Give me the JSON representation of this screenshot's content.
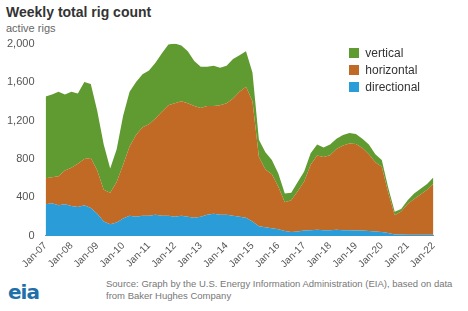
{
  "chart_data": {
    "type": "stacked_area",
    "title": "Weekly total rig count",
    "subtitle": "active rigs",
    "source": "Source: Graph by the U.S. Energy Information Administration (EIA), based on data from Baker Hughes Company",
    "logo": "eia",
    "categories": [
      "Jan-07",
      null,
      null,
      null,
      "Jan-08",
      null,
      null,
      null,
      "Jan-09",
      null,
      null,
      null,
      "Jan-10",
      null,
      null,
      null,
      "Jan-11",
      null,
      null,
      null,
      "Jan-12",
      null,
      null,
      null,
      "Jan-13",
      null,
      null,
      null,
      "Jan-14",
      null,
      null,
      null,
      "Jan-15",
      null,
      null,
      null,
      "Jan-16",
      null,
      null,
      null,
      "Jan-17",
      null,
      null,
      null,
      "Jan-18",
      null,
      null,
      null,
      "Jan-19",
      null,
      null,
      null,
      "Jan-20",
      null,
      null,
      null,
      "Jan-21",
      null,
      null,
      null,
      "Jan-22"
    ],
    "series": [
      {
        "name": "directional",
        "color": "#2a9dd8",
        "values": [
          330,
          340,
          320,
          330,
          310,
          300,
          320,
          290,
          230,
          150,
          120,
          140,
          180,
          210,
          200,
          210,
          210,
          220,
          210,
          210,
          200,
          210,
          200,
          190,
          200,
          220,
          230,
          220,
          220,
          210,
          200,
          190,
          150,
          100,
          90,
          80,
          70,
          50,
          40,
          45,
          55,
          60,
          65,
          60,
          60,
          65,
          60,
          60,
          55,
          55,
          50,
          45,
          40,
          30,
          15,
          15,
          12,
          12,
          12,
          12,
          12
        ]
      },
      {
        "name": "horizontal",
        "color": "#c06a26",
        "values": [
          270,
          270,
          300,
          350,
          400,
          450,
          480,
          520,
          450,
          330,
          330,
          420,
          560,
          720,
          850,
          920,
          950,
          1000,
          1080,
          1150,
          1180,
          1190,
          1180,
          1160,
          1130,
          1130,
          1120,
          1140,
          1160,
          1220,
          1300,
          1360,
          1250,
          720,
          600,
          560,
          440,
          300,
          330,
          420,
          510,
          680,
          770,
          760,
          780,
          840,
          880,
          900,
          900,
          860,
          800,
          720,
          680,
          420,
          200,
          240,
          320,
          373,
          418,
          468,
          533
        ]
      },
      {
        "name": "vertical",
        "color": "#609b31",
        "values": [
          850,
          860,
          880,
          790,
          790,
          730,
          800,
          770,
          620,
          470,
          250,
          340,
          510,
          570,
          550,
          550,
          560,
          580,
          610,
          630,
          620,
          580,
          540,
          470,
          430,
          410,
          420,
          390,
          390,
          410,
          380,
          370,
          300,
          180,
          180,
          150,
          140,
          90,
          80,
          95,
          105,
          120,
          115,
          100,
          110,
          105,
          110,
          110,
          105,
          95,
          100,
          85,
          70,
          50,
          35,
          25,
          38,
          55,
          60,
          60,
          65
        ]
      }
    ],
    "ylim": [
      0,
      2000
    ],
    "yticks": [
      0,
      400,
      800,
      {
        "value": 1200,
        "label": "1,200"
      },
      {
        "value": 1600,
        "label": "1,600"
      },
      {
        "value": 2000,
        "label": "2,000"
      }
    ],
    "stacked": true,
    "grid": false,
    "legend": "upper right"
  }
}
